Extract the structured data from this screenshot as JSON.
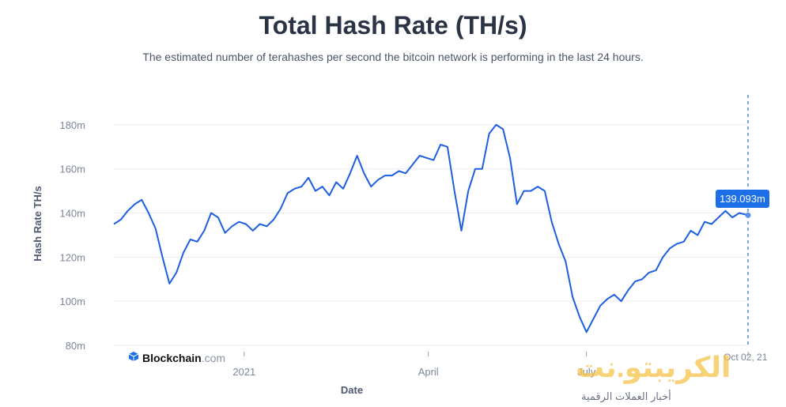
{
  "header": {
    "title": "Total Hash Rate (TH/s)",
    "subtitle": "The estimated number of terahashes per second the bitcoin network is performing in the last 24 hours."
  },
  "tooltip": {
    "value": "139.093m"
  },
  "brand": {
    "name": "Blockchain",
    "suffix": ".com"
  },
  "watermark": {
    "main": "الكريبتو.نت",
    "sub": "أخبار العملات الرقمية"
  },
  "last_date_label": "Oct 02, 21",
  "colors": {
    "line": "#1d5fe0",
    "tooltip": "#1d6fe8",
    "grid": "#e7ebf0"
  },
  "chart_data": {
    "type": "line",
    "title": "Total Hash Rate (TH/s)",
    "xlabel": "Date",
    "ylabel": "Hash Rate TH/s",
    "ylim": [
      80,
      190
    ],
    "yticks": [
      80,
      100,
      120,
      140,
      160,
      180
    ],
    "ytick_labels": [
      "80m",
      "100m",
      "120m",
      "140m",
      "160m",
      "180m"
    ],
    "xticks": [
      "2020-12-16",
      "2021-04-01",
      "2021-07-01",
      "2021-10-02"
    ],
    "xtick_labels": [
      "2021",
      "April",
      "July",
      "Oct"
    ],
    "series": [
      {
        "values": [
          [
            "2020-10-02",
            135
          ],
          [
            "2020-10-06",
            137
          ],
          [
            "2020-10-10",
            141
          ],
          [
            "2020-10-14",
            144
          ],
          [
            "2020-10-18",
            146
          ],
          [
            "2020-10-22",
            140
          ],
          [
            "2020-10-26",
            133
          ],
          [
            "2020-10-30",
            120
          ],
          [
            "2020-11-03",
            108
          ],
          [
            "2020-11-07",
            113
          ],
          [
            "2020-11-11",
            122
          ],
          [
            "2020-11-15",
            128
          ],
          [
            "2020-11-19",
            127
          ],
          [
            "2020-11-23",
            132
          ],
          [
            "2020-11-27",
            140
          ],
          [
            "2020-12-01",
            138
          ],
          [
            "2020-12-05",
            131
          ],
          [
            "2020-12-09",
            134
          ],
          [
            "2020-12-13",
            136
          ],
          [
            "2020-12-17",
            135
          ],
          [
            "2020-12-21",
            132
          ],
          [
            "2020-12-25",
            135
          ],
          [
            "2020-12-29",
            134
          ],
          [
            "2021-01-02",
            137
          ],
          [
            "2021-01-06",
            142
          ],
          [
            "2021-01-10",
            149
          ],
          [
            "2021-01-14",
            151
          ],
          [
            "2021-01-18",
            152
          ],
          [
            "2021-01-22",
            156
          ],
          [
            "2021-01-26",
            150
          ],
          [
            "2021-01-30",
            152
          ],
          [
            "2021-02-03",
            148
          ],
          [
            "2021-02-07",
            154
          ],
          [
            "2021-02-11",
            151
          ],
          [
            "2021-02-15",
            158
          ],
          [
            "2021-02-19",
            166
          ],
          [
            "2021-02-23",
            158
          ],
          [
            "2021-02-27",
            152
          ],
          [
            "2021-03-03",
            155
          ],
          [
            "2021-03-07",
            157
          ],
          [
            "2021-03-11",
            157
          ],
          [
            "2021-03-15",
            159
          ],
          [
            "2021-03-19",
            158
          ],
          [
            "2021-03-23",
            162
          ],
          [
            "2021-03-27",
            166
          ],
          [
            "2021-03-31",
            165
          ],
          [
            "2021-04-04",
            164
          ],
          [
            "2021-04-08",
            171
          ],
          [
            "2021-04-12",
            170
          ],
          [
            "2021-04-16",
            150
          ],
          [
            "2021-04-20",
            132
          ],
          [
            "2021-04-24",
            150
          ],
          [
            "2021-04-28",
            160
          ],
          [
            "2021-05-02",
            160
          ],
          [
            "2021-05-06",
            176
          ],
          [
            "2021-05-10",
            180
          ],
          [
            "2021-05-14",
            178
          ],
          [
            "2021-05-18",
            165
          ],
          [
            "2021-05-22",
            144
          ],
          [
            "2021-05-26",
            150
          ],
          [
            "2021-05-30",
            150
          ],
          [
            "2021-06-03",
            152
          ],
          [
            "2021-06-07",
            150
          ],
          [
            "2021-06-11",
            136
          ],
          [
            "2021-06-15",
            126
          ],
          [
            "2021-06-19",
            118
          ],
          [
            "2021-06-23",
            102
          ],
          [
            "2021-06-27",
            93
          ],
          [
            "2021-07-01",
            86
          ],
          [
            "2021-07-05",
            92
          ],
          [
            "2021-07-09",
            98
          ],
          [
            "2021-07-13",
            101
          ],
          [
            "2021-07-17",
            103
          ],
          [
            "2021-07-21",
            100
          ],
          [
            "2021-07-25",
            105
          ],
          [
            "2021-07-29",
            109
          ],
          [
            "2021-08-02",
            110
          ],
          [
            "2021-08-06",
            113
          ],
          [
            "2021-08-10",
            114
          ],
          [
            "2021-08-14",
            120
          ],
          [
            "2021-08-18",
            124
          ],
          [
            "2021-08-22",
            126
          ],
          [
            "2021-08-26",
            127
          ],
          [
            "2021-08-30",
            132
          ],
          [
            "2021-09-03",
            130
          ],
          [
            "2021-09-07",
            136
          ],
          [
            "2021-09-11",
            135
          ],
          [
            "2021-09-15",
            138
          ],
          [
            "2021-09-19",
            141
          ],
          [
            "2021-09-23",
            138
          ],
          [
            "2021-09-27",
            140
          ],
          [
            "2021-10-02",
            139
          ]
        ]
      }
    ]
  }
}
